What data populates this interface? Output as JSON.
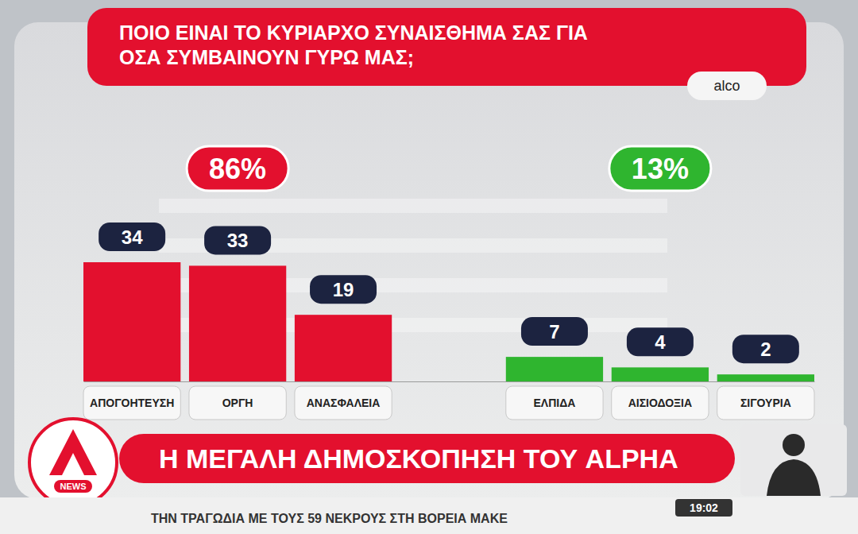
{
  "chart_data": {
    "type": "bar",
    "title": "ΠΟΙΟ ΕΙΝΑΙ ΤΟ ΚΥΡΙΑΡΧΟ ΣΥΝΑΙΣΘΗΜΑ ΣΑΣ ΓΙΑ ΟΣΑ ΣΥΜΒΑΙΝΟΥΝ ΓΥΡΩ ΜΑΣ;",
    "source": "alco",
    "categories": [
      "ΑΠΟΓΟΗΤΕΥΣΗ",
      "ΟΡΓΗ",
      "ΑΝΑΣΦΑΛΕΙΑ",
      "ΕΛΠΙΔΑ",
      "ΑΙΣΙΟΔΟΞΙΑ",
      "ΣΙΓΟΥΡΙΑ"
    ],
    "values": [
      34,
      33,
      19,
      7,
      4,
      2
    ],
    "colors": [
      "#e3102e",
      "#e3102e",
      "#e3102e",
      "#2fb52f",
      "#2fb52f",
      "#2fb52f"
    ],
    "ylim": [
      0,
      34
    ],
    "data_labels": true,
    "tick_labels": "x",
    "grid": false,
    "annotations": [
      {
        "text": "86%",
        "categories": [
          "ΑΠΟΓΟΗΤΕΥΣΗ",
          "ΟΡΓΗ",
          "ΑΝΑΣΦΑΛΕΙΑ"
        ],
        "color": "#e3102e"
      },
      {
        "text": "13%",
        "categories": [
          "ΕΛΠΙΔΑ",
          "ΑΙΣΙΟΔΟΞΙΑ",
          "ΣΙΓΟΥΡΙΑ"
        ],
        "color": "#2fb52f"
      }
    ]
  },
  "broadcast": {
    "banner": "Η ΜΕΓΑΛΗ ΔΗΜΟΣΚΟΠΗΣΗ ΤΟΥ ALPHA",
    "logo": "NEWS",
    "ticker": "ΤΗΝ ΤΡΑΓΩΔΙΑ ΜΕ ΤΟΥΣ 59 ΝΕΚΡΟΥΣ ΣΤΗ ΒΟΡΕΙΑ ΜΑΚΕ",
    "clock": "19:02"
  }
}
